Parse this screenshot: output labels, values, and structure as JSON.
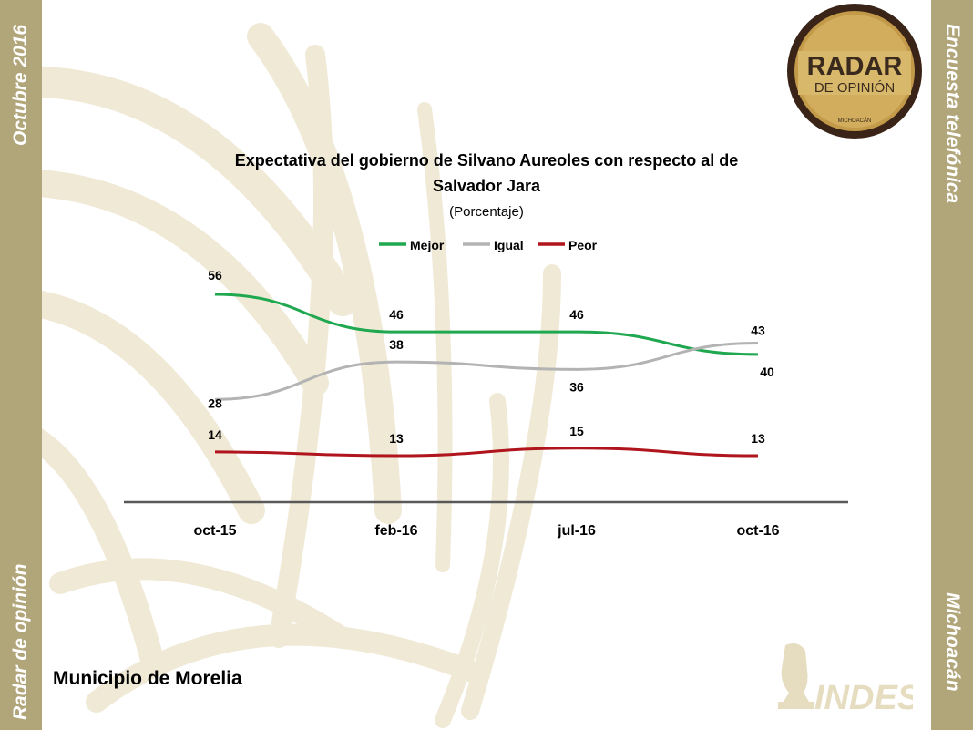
{
  "sidebar_left": {
    "top_text": "Octubre 2016",
    "bottom_text": "Radar de opinión"
  },
  "sidebar_right": {
    "top_text": "Encuesta telefónica",
    "bottom_text": "Michoacán"
  },
  "logo_radar": {
    "line1": "RADAR",
    "line2": "DE OPINIÓN",
    "line3": "MICHOACÁN"
  },
  "logo_indes": {
    "text": "INDES"
  },
  "footer": {
    "title": "Municipio de Morelia"
  },
  "colors": {
    "sidebar": "#b1a57a",
    "mejor": "#1fa84f",
    "igual": "#b3b3b3",
    "peor": "#b0151d",
    "axis": "#595959"
  },
  "chart_data": {
    "type": "line",
    "title_line1": "Expectativa del gobierno de Silvano Aureoles con respecto al de",
    "title_line2": "Salvador Jara",
    "subtitle": "(Porcentaje)",
    "categories": [
      "oct-15",
      "feb-16",
      "jul-16",
      "oct-16"
    ],
    "series": [
      {
        "name": "Mejor",
        "values": [
          56,
          46,
          46,
          40
        ],
        "color": "#1fa84f"
      },
      {
        "name": "Igual",
        "values": [
          28,
          38,
          36,
          43
        ],
        "color": "#b3b3b3"
      },
      {
        "name": "Peor",
        "values": [
          14,
          13,
          15,
          13
        ],
        "color": "#b0151d"
      }
    ],
    "legend_position": "top",
    "grid": false,
    "ylim": [
      -12,
      74
    ]
  }
}
